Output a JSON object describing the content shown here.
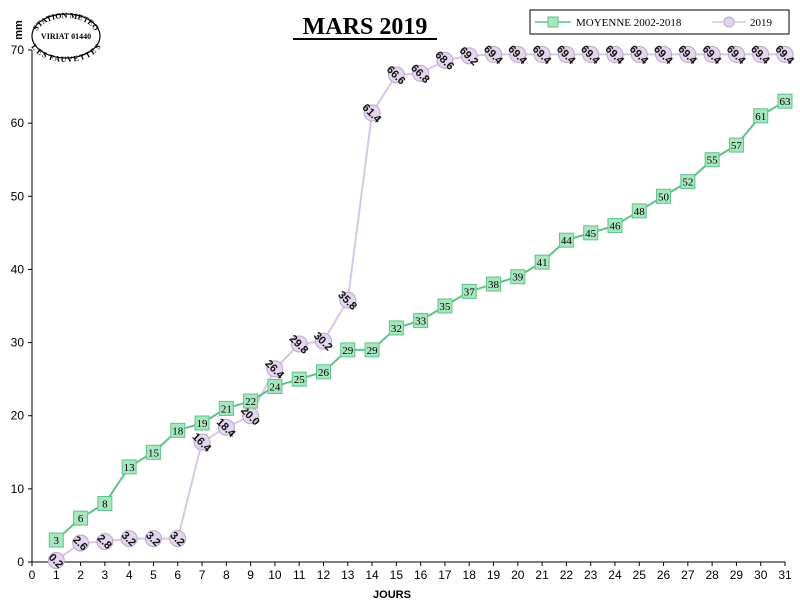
{
  "title": "MARS 2019",
  "stamp": {
    "top": "STATION METEO",
    "middle": "VIRIAT 01440",
    "bottom": "LES FAUVETTES"
  },
  "chart_data": {
    "type": "line",
    "ylabel": "mm",
    "xlabel": "JOURS",
    "xlim": [
      0,
      31
    ],
    "ylim": [
      0,
      70
    ],
    "yticks": [
      0,
      10,
      20,
      30,
      40,
      50,
      60,
      70
    ],
    "x": [
      1,
      2,
      3,
      4,
      5,
      6,
      7,
      8,
      9,
      10,
      11,
      12,
      13,
      14,
      15,
      16,
      17,
      18,
      19,
      20,
      21,
      22,
      23,
      24,
      25,
      26,
      27,
      28,
      29,
      30,
      31
    ],
    "legend_position": "top-right",
    "series": [
      {
        "name": "MOYENNE 2002-2018",
        "color": "#5ec28a",
        "fill": "#a8e6bf",
        "marker": "square",
        "values": [
          3,
          6,
          8,
          13,
          15,
          18,
          19,
          21,
          22,
          24,
          25,
          26,
          29,
          29,
          32,
          33,
          35,
          37,
          38,
          39,
          41,
          44,
          45,
          46,
          48,
          50,
          52,
          55,
          57,
          61,
          63
        ],
        "labels": [
          "3",
          "6",
          "8",
          "13",
          "15",
          "18",
          "19",
          "21",
          "22",
          "24",
          "25",
          "26",
          "29",
          "29",
          "32",
          "33",
          "35",
          "37",
          "38",
          "39",
          "41",
          "44",
          "45",
          "46",
          "48",
          "50",
          "52",
          "55",
          "57",
          "61",
          "63"
        ]
      },
      {
        "name": "2019",
        "color": "#d6c8e0",
        "fill": "#e4d6ee",
        "marker": "circle",
        "values": [
          0.2,
          2.6,
          2.8,
          3.2,
          3.2,
          3.2,
          16.4,
          18.4,
          20.0,
          26.4,
          29.8,
          30.2,
          35.8,
          61.4,
          66.6,
          66.8,
          68.6,
          69.2,
          69.4,
          69.4,
          69.4,
          69.4,
          69.4,
          69.4,
          69.4,
          69.4,
          69.4,
          69.4,
          69.4,
          69.4,
          69.4
        ],
        "labels": [
          "0.2",
          "2.6",
          "2.8",
          "3.2",
          "3.2",
          "3.2",
          "16.4",
          "18.4",
          "20.0",
          "26.4",
          "29.8",
          "30.2",
          "35.8",
          "61.4",
          "66.6",
          "66.8",
          "68.6",
          "69.2",
          "69.4",
          "69.4",
          "69.4",
          "69.4",
          "69.4",
          "69.4",
          "69.4",
          "69.4",
          "69.4",
          "69.4",
          "69.4",
          "69.4",
          "69.4"
        ]
      }
    ]
  }
}
